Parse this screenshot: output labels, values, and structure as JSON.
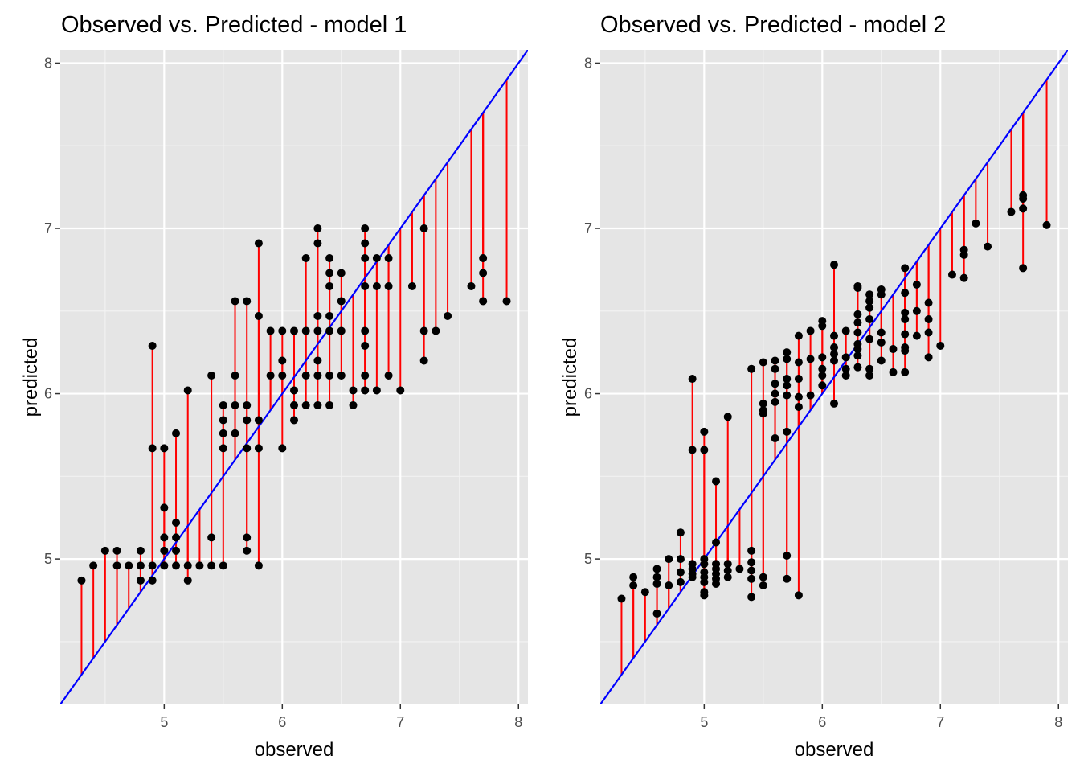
{
  "chart_data": [
    {
      "type": "scatter",
      "title": "Observed vs. Predicted - model 1",
      "xlabel": "observed",
      "ylabel": "predicted",
      "xlim": [
        4.12,
        8.08
      ],
      "ylim": [
        4.12,
        8.08
      ],
      "x_ticks": [
        5,
        6,
        7,
        8
      ],
      "y_ticks": [
        5,
        6,
        7,
        8
      ],
      "grid": true,
      "reference_line": {
        "slope": 1,
        "intercept": 0,
        "color": "#0000ff"
      },
      "residual_color": "#ff0000",
      "point_color": "#000000",
      "background": "#e5e5e5",
      "points": [
        [
          4.3,
          4.87
        ],
        [
          4.4,
          4.96
        ],
        [
          4.5,
          5.05
        ],
        [
          4.6,
          5.05
        ],
        [
          4.6,
          4.96
        ],
        [
          4.7,
          4.96
        ],
        [
          4.8,
          5.05
        ],
        [
          4.8,
          4.96
        ],
        [
          4.8,
          4.87
        ],
        [
          4.9,
          6.29
        ],
        [
          4.9,
          5.67
        ],
        [
          4.9,
          4.96
        ],
        [
          4.9,
          4.87
        ],
        [
          5.0,
          5.67
        ],
        [
          5.0,
          5.31
        ],
        [
          5.0,
          5.13
        ],
        [
          5.0,
          5.05
        ],
        [
          5.0,
          4.96
        ],
        [
          5.1,
          5.76
        ],
        [
          5.1,
          5.22
        ],
        [
          5.1,
          5.13
        ],
        [
          5.1,
          5.05
        ],
        [
          5.1,
          4.96
        ],
        [
          5.2,
          6.02
        ],
        [
          5.2,
          4.96
        ],
        [
          5.2,
          4.87
        ],
        [
          5.3,
          4.96
        ],
        [
          5.4,
          6.11
        ],
        [
          5.4,
          5.13
        ],
        [
          5.4,
          4.96
        ],
        [
          5.5,
          5.93
        ],
        [
          5.5,
          5.84
        ],
        [
          5.5,
          5.76
        ],
        [
          5.5,
          5.67
        ],
        [
          5.5,
          4.96
        ],
        [
          5.6,
          6.56
        ],
        [
          5.6,
          6.11
        ],
        [
          5.6,
          5.93
        ],
        [
          5.6,
          5.76
        ],
        [
          5.7,
          6.56
        ],
        [
          5.7,
          5.93
        ],
        [
          5.7,
          5.84
        ],
        [
          5.7,
          5.67
        ],
        [
          5.7,
          5.13
        ],
        [
          5.7,
          5.05
        ],
        [
          5.8,
          6.91
        ],
        [
          5.8,
          6.47
        ],
        [
          5.8,
          5.84
        ],
        [
          5.8,
          5.67
        ],
        [
          5.8,
          4.96
        ],
        [
          5.9,
          6.38
        ],
        [
          5.9,
          6.11
        ],
        [
          6.0,
          6.38
        ],
        [
          6.0,
          6.2
        ],
        [
          6.0,
          6.11
        ],
        [
          6.0,
          5.67
        ],
        [
          6.1,
          6.38
        ],
        [
          6.1,
          6.02
        ],
        [
          6.1,
          5.93
        ],
        [
          6.1,
          5.84
        ],
        [
          6.2,
          6.82
        ],
        [
          6.2,
          6.38
        ],
        [
          6.2,
          6.11
        ],
        [
          6.2,
          5.93
        ],
        [
          6.3,
          7.0
        ],
        [
          6.3,
          6.91
        ],
        [
          6.3,
          6.47
        ],
        [
          6.3,
          6.38
        ],
        [
          6.3,
          6.2
        ],
        [
          6.3,
          6.11
        ],
        [
          6.3,
          5.93
        ],
        [
          6.4,
          6.82
        ],
        [
          6.4,
          6.73
        ],
        [
          6.4,
          6.65
        ],
        [
          6.4,
          6.47
        ],
        [
          6.4,
          6.38
        ],
        [
          6.4,
          6.11
        ],
        [
          6.4,
          5.93
        ],
        [
          6.5,
          6.73
        ],
        [
          6.5,
          6.56
        ],
        [
          6.5,
          6.38
        ],
        [
          6.5,
          6.11
        ],
        [
          6.6,
          6.02
        ],
        [
          6.6,
          5.93
        ],
        [
          6.7,
          7.0
        ],
        [
          6.7,
          6.91
        ],
        [
          6.7,
          6.82
        ],
        [
          6.7,
          6.65
        ],
        [
          6.7,
          6.38
        ],
        [
          6.7,
          6.29
        ],
        [
          6.7,
          6.11
        ],
        [
          6.7,
          6.02
        ],
        [
          6.8,
          6.82
        ],
        [
          6.8,
          6.65
        ],
        [
          6.8,
          6.02
        ],
        [
          6.9,
          6.82
        ],
        [
          6.9,
          6.65
        ],
        [
          6.9,
          6.11
        ],
        [
          7.0,
          6.02
        ],
        [
          7.1,
          6.65
        ],
        [
          7.2,
          7.0
        ],
        [
          7.2,
          6.38
        ],
        [
          7.2,
          6.2
        ],
        [
          7.3,
          6.38
        ],
        [
          7.4,
          6.47
        ],
        [
          7.6,
          6.65
        ],
        [
          7.7,
          6.82
        ],
        [
          7.7,
          6.73
        ],
        [
          7.7,
          6.56
        ],
        [
          7.9,
          6.56
        ]
      ]
    },
    {
      "type": "scatter",
      "title": "Observed vs. Predicted - model 2",
      "xlabel": "observed",
      "ylabel": "predicted",
      "xlim": [
        4.12,
        8.08
      ],
      "ylim": [
        4.12,
        8.08
      ],
      "x_ticks": [
        5,
        6,
        7,
        8
      ],
      "y_ticks": [
        5,
        6,
        7,
        8
      ],
      "grid": true,
      "reference_line": {
        "slope": 1,
        "intercept": 0,
        "color": "#0000ff"
      },
      "residual_color": "#ff0000",
      "point_color": "#000000",
      "background": "#e5e5e5",
      "points": [
        [
          4.3,
          4.76
        ],
        [
          4.4,
          4.89
        ],
        [
          4.4,
          4.84
        ],
        [
          4.5,
          4.8
        ],
        [
          4.6,
          4.94
        ],
        [
          4.6,
          4.89
        ],
        [
          4.6,
          4.85
        ],
        [
          4.6,
          4.67
        ],
        [
          4.7,
          5.0
        ],
        [
          4.7,
          4.84
        ],
        [
          4.8,
          5.16
        ],
        [
          4.8,
          5.0
        ],
        [
          4.8,
          4.92
        ],
        [
          4.8,
          4.86
        ],
        [
          4.9,
          6.09
        ],
        [
          4.9,
          5.66
        ],
        [
          4.9,
          4.97
        ],
        [
          4.9,
          4.94
        ],
        [
          4.9,
          4.91
        ],
        [
          4.9,
          4.89
        ],
        [
          5.0,
          5.77
        ],
        [
          5.0,
          5.66
        ],
        [
          5.0,
          5.0
        ],
        [
          5.0,
          4.97
        ],
        [
          5.0,
          4.92
        ],
        [
          5.0,
          4.89
        ],
        [
          5.0,
          4.86
        ],
        [
          5.0,
          4.8
        ],
        [
          5.0,
          4.78
        ],
        [
          5.1,
          5.47
        ],
        [
          5.1,
          5.1
        ],
        [
          5.1,
          4.97
        ],
        [
          5.1,
          4.94
        ],
        [
          5.1,
          4.91
        ],
        [
          5.1,
          4.88
        ],
        [
          5.1,
          4.85
        ],
        [
          5.2,
          5.86
        ],
        [
          5.2,
          4.97
        ],
        [
          5.2,
          4.93
        ],
        [
          5.2,
          4.89
        ],
        [
          5.3,
          4.94
        ],
        [
          5.4,
          6.15
        ],
        [
          5.4,
          5.05
        ],
        [
          5.4,
          4.98
        ],
        [
          5.4,
          4.93
        ],
        [
          5.4,
          4.88
        ],
        [
          5.4,
          4.77
        ],
        [
          5.5,
          6.19
        ],
        [
          5.5,
          5.94
        ],
        [
          5.5,
          5.9
        ],
        [
          5.5,
          5.88
        ],
        [
          5.5,
          4.89
        ],
        [
          5.5,
          4.84
        ],
        [
          5.6,
          6.2
        ],
        [
          5.6,
          6.15
        ],
        [
          5.6,
          6.06
        ],
        [
          5.6,
          6.0
        ],
        [
          5.6,
          5.95
        ],
        [
          5.6,
          5.73
        ],
        [
          5.7,
          6.25
        ],
        [
          5.7,
          6.21
        ],
        [
          5.7,
          6.09
        ],
        [
          5.7,
          6.05
        ],
        [
          5.7,
          5.99
        ],
        [
          5.7,
          5.77
        ],
        [
          5.7,
          5.02
        ],
        [
          5.7,
          4.88
        ],
        [
          5.8,
          6.35
        ],
        [
          5.8,
          6.19
        ],
        [
          5.8,
          6.09
        ],
        [
          5.8,
          5.98
        ],
        [
          5.8,
          5.92
        ],
        [
          5.8,
          4.78
        ],
        [
          5.9,
          6.38
        ],
        [
          5.9,
          6.21
        ],
        [
          5.9,
          5.99
        ],
        [
          6.0,
          6.44
        ],
        [
          6.0,
          6.41
        ],
        [
          6.0,
          6.22
        ],
        [
          6.0,
          6.15
        ],
        [
          6.0,
          6.11
        ],
        [
          6.0,
          6.05
        ],
        [
          6.1,
          6.78
        ],
        [
          6.1,
          6.35
        ],
        [
          6.1,
          6.28
        ],
        [
          6.1,
          6.24
        ],
        [
          6.1,
          6.2
        ],
        [
          6.1,
          5.94
        ],
        [
          6.2,
          6.38
        ],
        [
          6.2,
          6.22
        ],
        [
          6.2,
          6.15
        ],
        [
          6.2,
          6.11
        ],
        [
          6.3,
          6.65
        ],
        [
          6.3,
          6.64
        ],
        [
          6.3,
          6.48
        ],
        [
          6.3,
          6.43
        ],
        [
          6.3,
          6.37
        ],
        [
          6.3,
          6.3
        ],
        [
          6.3,
          6.27
        ],
        [
          6.3,
          6.23
        ],
        [
          6.3,
          6.16
        ],
        [
          6.4,
          6.6
        ],
        [
          6.4,
          6.56
        ],
        [
          6.4,
          6.52
        ],
        [
          6.4,
          6.45
        ],
        [
          6.4,
          6.33
        ],
        [
          6.4,
          6.15
        ],
        [
          6.4,
          6.11
        ],
        [
          6.5,
          6.63
        ],
        [
          6.5,
          6.6
        ],
        [
          6.5,
          6.37
        ],
        [
          6.5,
          6.31
        ],
        [
          6.5,
          6.2
        ],
        [
          6.6,
          6.27
        ],
        [
          6.6,
          6.13
        ],
        [
          6.7,
          6.76
        ],
        [
          6.7,
          6.61
        ],
        [
          6.7,
          6.49
        ],
        [
          6.7,
          6.45
        ],
        [
          6.7,
          6.36
        ],
        [
          6.7,
          6.28
        ],
        [
          6.7,
          6.26
        ],
        [
          6.7,
          6.13
        ],
        [
          6.8,
          6.66
        ],
        [
          6.8,
          6.5
        ],
        [
          6.8,
          6.35
        ],
        [
          6.9,
          6.55
        ],
        [
          6.9,
          6.45
        ],
        [
          6.9,
          6.37
        ],
        [
          6.9,
          6.22
        ],
        [
          7.0,
          6.29
        ],
        [
          7.1,
          6.72
        ],
        [
          7.2,
          6.87
        ],
        [
          7.2,
          6.84
        ],
        [
          7.2,
          6.7
        ],
        [
          7.3,
          7.03
        ],
        [
          7.4,
          6.89
        ],
        [
          7.6,
          7.1
        ],
        [
          7.7,
          7.2
        ],
        [
          7.7,
          7.18
        ],
        [
          7.7,
          7.12
        ],
        [
          7.7,
          6.76
        ],
        [
          7.9,
          7.02
        ]
      ]
    }
  ]
}
